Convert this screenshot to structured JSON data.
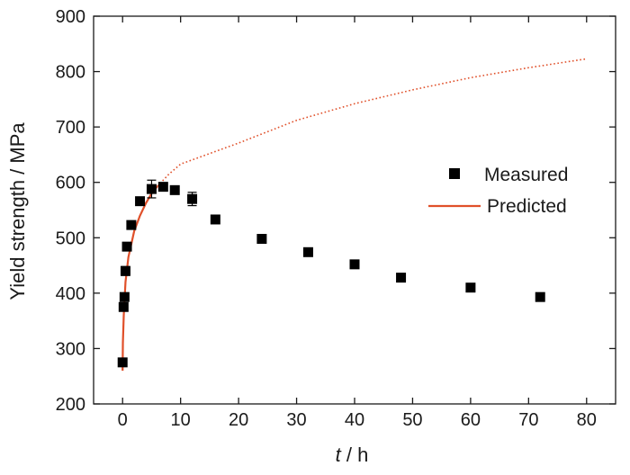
{
  "chart_data": {
    "type": "scatter",
    "title": "",
    "xlabel": {
      "italic": "t",
      "rest": " / h"
    },
    "ylabel": "Yield strength / MPa",
    "xlim": [
      -5,
      85
    ],
    "ylim": [
      200,
      900
    ],
    "xticks": [
      0,
      10,
      20,
      30,
      40,
      50,
      60,
      70,
      80
    ],
    "yticks": [
      200,
      300,
      400,
      500,
      600,
      700,
      800,
      900
    ],
    "grid": false,
    "legend": {
      "placement": "right-middle",
      "entries": [
        "Measured",
        "Predicted"
      ]
    },
    "colors": {
      "measured": "#000000",
      "predicted": "#e0502a",
      "axis": "#1a1a1a"
    },
    "series": [
      {
        "name": "Measured",
        "kind": "points",
        "points": [
          {
            "x": 0,
            "y": 275,
            "err": 0
          },
          {
            "x": 0.17,
            "y": 375,
            "err": 0
          },
          {
            "x": 0.33,
            "y": 393,
            "err": 0
          },
          {
            "x": 0.5,
            "y": 440,
            "err": 8
          },
          {
            "x": 0.75,
            "y": 484,
            "err": 5
          },
          {
            "x": 1.5,
            "y": 523,
            "err": 0
          },
          {
            "x": 3,
            "y": 566,
            "err": 4
          },
          {
            "x": 5,
            "y": 588,
            "err": 16
          },
          {
            "x": 7,
            "y": 592,
            "err": 0
          },
          {
            "x": 9,
            "y": 586,
            "err": 0
          },
          {
            "x": 12,
            "y": 570,
            "err": 12
          },
          {
            "x": 16,
            "y": 533,
            "err": 0
          },
          {
            "x": 24,
            "y": 498,
            "err": 7
          },
          {
            "x": 32,
            "y": 474,
            "err": 6
          },
          {
            "x": 40,
            "y": 452,
            "err": 0
          },
          {
            "x": 48,
            "y": 428,
            "err": 0
          },
          {
            "x": 60,
            "y": 410,
            "err": 0
          },
          {
            "x": 72,
            "y": 393,
            "err": 0
          }
        ]
      },
      {
        "name": "Predicted",
        "kind": "line",
        "solid_until": 6,
        "points": [
          {
            "x": 0,
            "y": 260
          },
          {
            "x": 0.05,
            "y": 310
          },
          {
            "x": 0.2,
            "y": 360
          },
          {
            "x": 0.5,
            "y": 420
          },
          {
            "x": 1,
            "y": 465
          },
          {
            "x": 2,
            "y": 512
          },
          {
            "x": 3,
            "y": 540
          },
          {
            "x": 4,
            "y": 562
          },
          {
            "x": 5,
            "y": 580
          },
          {
            "x": 6,
            "y": 593
          },
          {
            "x": 8,
            "y": 615
          },
          {
            "x": 10,
            "y": 633
          },
          {
            "x": 15,
            "y": 652
          },
          {
            "x": 20,
            "y": 671
          },
          {
            "x": 30,
            "y": 712
          },
          {
            "x": 40,
            "y": 742
          },
          {
            "x": 50,
            "y": 767
          },
          {
            "x": 60,
            "y": 789
          },
          {
            "x": 70,
            "y": 807
          },
          {
            "x": 80,
            "y": 823
          }
        ]
      }
    ]
  }
}
